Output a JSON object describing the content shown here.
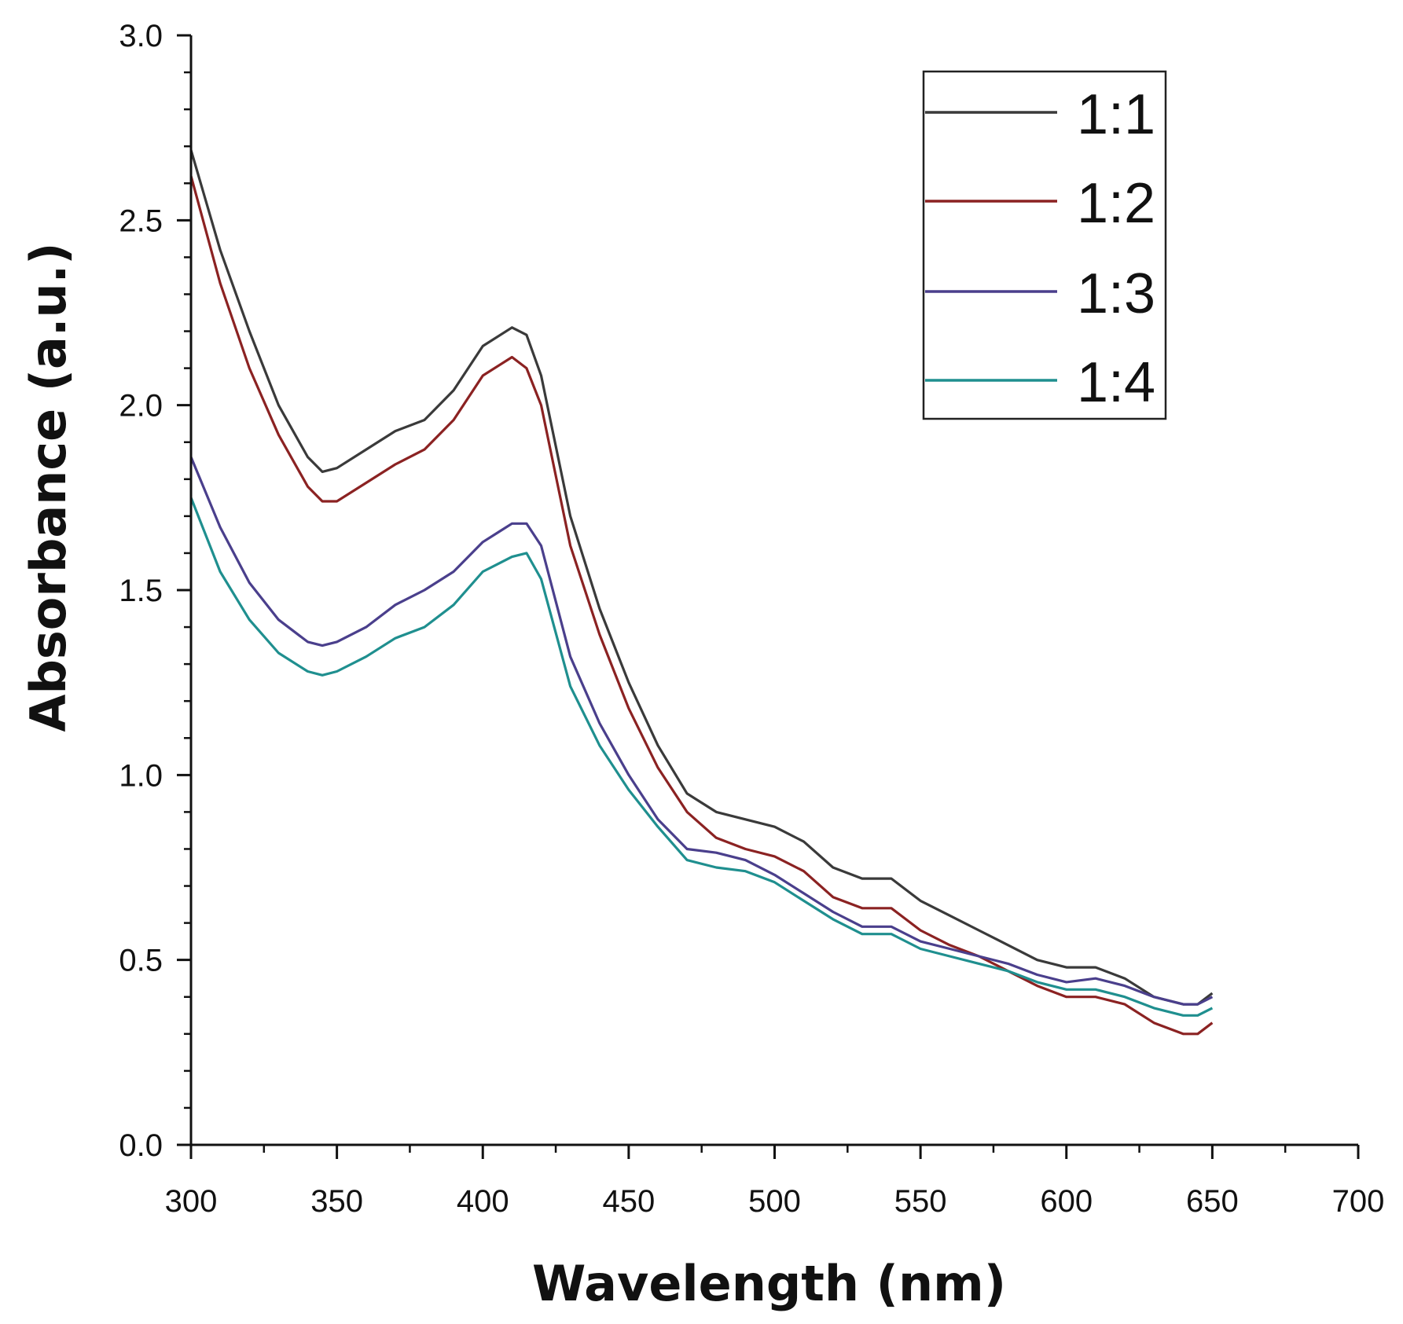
{
  "chart_data": {
    "type": "line",
    "title": "",
    "xlabel": "Wavelength (nm)",
    "ylabel": "Absorbance (a.u.)",
    "xlim": [
      300,
      700
    ],
    "ylim": [
      0.0,
      3.0
    ],
    "x_ticks": [
      300,
      350,
      400,
      450,
      500,
      550,
      600,
      650,
      700
    ],
    "y_ticks": [
      "0.0",
      "0.5",
      "1.0",
      "1.5",
      "2.0",
      "2.5",
      "3.0"
    ],
    "grid": false,
    "legend_position": "top-right",
    "x": [
      300,
      310,
      320,
      330,
      340,
      345,
      350,
      360,
      370,
      380,
      390,
      400,
      410,
      415,
      420,
      430,
      440,
      450,
      460,
      470,
      480,
      490,
      500,
      510,
      520,
      530,
      540,
      550,
      560,
      570,
      580,
      590,
      600,
      610,
      620,
      630,
      640,
      645,
      650
    ],
    "series": [
      {
        "name": "1:1",
        "color": "#3a3a3a",
        "values": [
          2.69,
          2.42,
          2.2,
          2.0,
          1.86,
          1.82,
          1.83,
          1.88,
          1.93,
          1.96,
          2.04,
          2.16,
          2.21,
          2.19,
          2.08,
          1.7,
          1.45,
          1.25,
          1.08,
          0.95,
          0.9,
          0.88,
          0.86,
          0.82,
          0.75,
          0.72,
          0.72,
          0.66,
          0.62,
          0.58,
          0.54,
          0.5,
          0.48,
          0.48,
          0.45,
          0.4,
          0.38,
          0.38,
          0.41
        ]
      },
      {
        "name": "1:2",
        "color": "#8b2222",
        "values": [
          2.62,
          2.33,
          2.1,
          1.92,
          1.78,
          1.74,
          1.74,
          1.79,
          1.84,
          1.88,
          1.96,
          2.08,
          2.13,
          2.1,
          2.0,
          1.62,
          1.38,
          1.18,
          1.02,
          0.9,
          0.83,
          0.8,
          0.78,
          0.74,
          0.67,
          0.64,
          0.64,
          0.58,
          0.54,
          0.51,
          0.47,
          0.43,
          0.4,
          0.4,
          0.38,
          0.33,
          0.3,
          0.3,
          0.33
        ]
      },
      {
        "name": "1:3",
        "color": "#4a3f8c",
        "values": [
          1.86,
          1.67,
          1.52,
          1.42,
          1.36,
          1.35,
          1.36,
          1.4,
          1.46,
          1.5,
          1.55,
          1.63,
          1.68,
          1.68,
          1.62,
          1.32,
          1.14,
          1.0,
          0.88,
          0.8,
          0.79,
          0.77,
          0.73,
          0.68,
          0.63,
          0.59,
          0.59,
          0.55,
          0.53,
          0.51,
          0.49,
          0.46,
          0.44,
          0.45,
          0.43,
          0.4,
          0.38,
          0.38,
          0.4
        ]
      },
      {
        "name": "1:4",
        "color": "#1f8f8f",
        "values": [
          1.75,
          1.55,
          1.42,
          1.33,
          1.28,
          1.27,
          1.28,
          1.32,
          1.37,
          1.4,
          1.46,
          1.55,
          1.59,
          1.6,
          1.53,
          1.24,
          1.08,
          0.96,
          0.86,
          0.77,
          0.75,
          0.74,
          0.71,
          0.66,
          0.61,
          0.57,
          0.57,
          0.53,
          0.51,
          0.49,
          0.47,
          0.44,
          0.42,
          0.42,
          0.4,
          0.37,
          0.35,
          0.35,
          0.37
        ]
      }
    ]
  }
}
